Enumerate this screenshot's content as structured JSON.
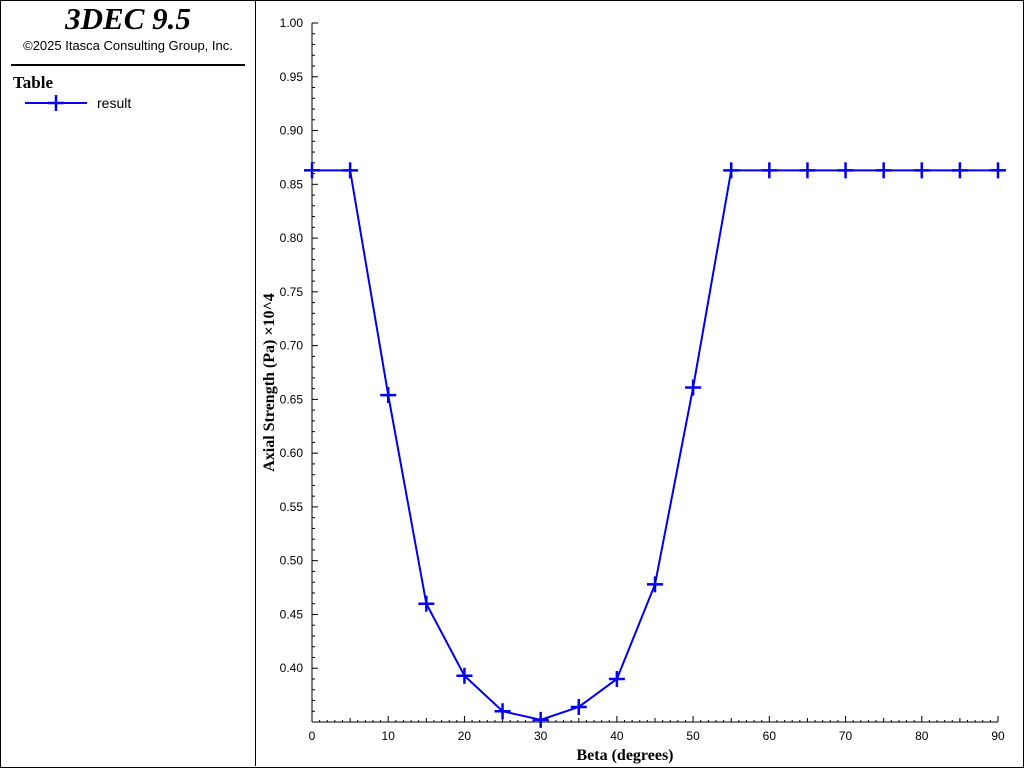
{
  "header": {
    "app_title": "3DEC 9.5",
    "copyright": "©2025 Itasca Consulting Group, Inc."
  },
  "legend": {
    "heading": "Table",
    "entries": [
      {
        "label": "result",
        "color": "#0000ee",
        "marker": "plus"
      }
    ]
  },
  "chart_data": {
    "type": "line",
    "xlabel": "Beta (degrees)",
    "ylabel": "Axial Strength (Pa) ×10^4",
    "xlim": [
      0,
      90
    ],
    "ylim": [
      0.35,
      1.0
    ],
    "xticks": [
      0,
      10,
      20,
      30,
      40,
      50,
      60,
      70,
      80,
      90
    ],
    "yticks": [
      0.4,
      0.45,
      0.5,
      0.55,
      0.6,
      0.65,
      0.7,
      0.75,
      0.8,
      0.85,
      0.9,
      0.95,
      1.0
    ],
    "xtick_labels": [
      "0",
      "10",
      "20",
      "30",
      "40",
      "50",
      "60",
      "70",
      "80",
      "90"
    ],
    "ytick_labels": [
      "0.40",
      "0.45",
      "0.50",
      "0.55",
      "0.60",
      "0.65",
      "0.70",
      "0.75",
      "0.80",
      "0.85",
      "0.90",
      "0.95",
      "1.00"
    ],
    "legend_position": "left-panel",
    "grid": false,
    "series": [
      {
        "name": "result",
        "color": "#0000ee",
        "marker": "plus",
        "x": [
          0,
          5,
          10,
          15,
          20,
          25,
          30,
          35,
          40,
          45,
          50,
          55,
          60,
          65,
          70,
          75,
          80,
          85,
          90
        ],
        "y": [
          0.863,
          0.863,
          0.654,
          0.46,
          0.393,
          0.36,
          0.352,
          0.364,
          0.39,
          0.478,
          0.661,
          0.863,
          0.863,
          0.863,
          0.863,
          0.863,
          0.863,
          0.863,
          0.863
        ]
      }
    ]
  }
}
